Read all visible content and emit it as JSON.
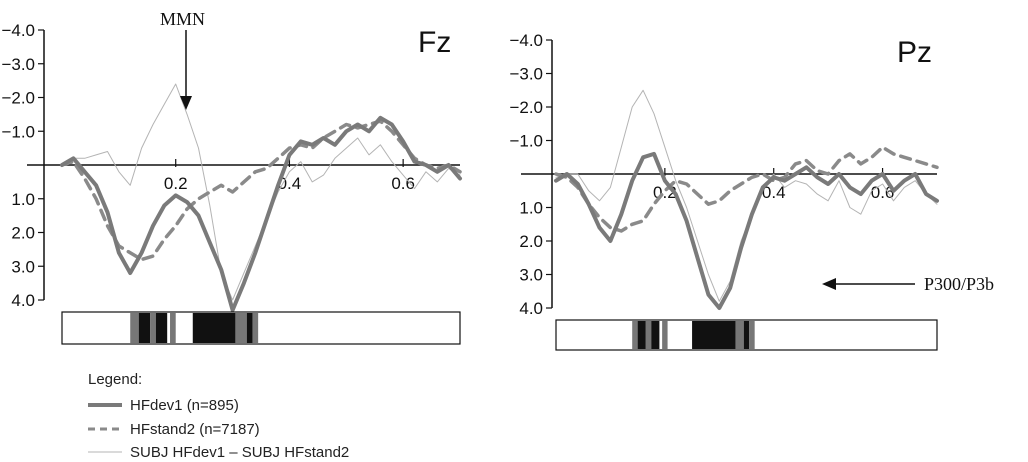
{
  "legend": {
    "title": "Legend:",
    "items": [
      {
        "label": "HFdev1 (n=895)",
        "style": "thick"
      },
      {
        "label": "HFstand2 (n=7187)",
        "style": "dashed"
      },
      {
        "label": "SUBJ HFdev1 – SUBJ HFstand2",
        "style": "thin"
      }
    ]
  },
  "annotations": {
    "mmn": "MMN",
    "p300": "P300/P3b"
  },
  "colors": {
    "thick_line": "#7a7a7a",
    "dashed_line": "#8a8a8a",
    "thin_line": "#b4b4b4",
    "axis": "#111111",
    "significance_dark": "#111111",
    "significance_mid": "#777777"
  },
  "chart_data": [
    {
      "type": "line",
      "title": "Fz",
      "xlabel": "",
      "ylabel": "",
      "xlim": [
        0.0,
        0.7
      ],
      "ylim": [
        -4.0,
        4.0
      ],
      "y_inverted": true,
      "x_ticks": [
        0.2,
        0.4,
        0.6
      ],
      "x_tick_labels": [
        "0.2",
        "0.4",
        "0.6"
      ],
      "y_ticks": [
        -4.0,
        -3.0,
        -2.0,
        -1.0,
        1.0,
        2.0,
        3.0,
        4.0
      ],
      "y_tick_labels": [
        "−4.0",
        "−3.0",
        "−2.0",
        "−1.0",
        "1.0",
        "2.0",
        "3.0",
        "4.0"
      ],
      "series": [
        {
          "name": "HFdev1 (n=895)",
          "style": "thick",
          "x": [
            0.0,
            0.02,
            0.04,
            0.06,
            0.08,
            0.1,
            0.12,
            0.14,
            0.16,
            0.18,
            0.2,
            0.22,
            0.24,
            0.26,
            0.28,
            0.3,
            0.32,
            0.34,
            0.36,
            0.38,
            0.4,
            0.42,
            0.44,
            0.46,
            0.48,
            0.5,
            0.52,
            0.54,
            0.56,
            0.58,
            0.6,
            0.62,
            0.64,
            0.66,
            0.68,
            0.7
          ],
          "y": [
            0.0,
            -0.2,
            0.2,
            0.6,
            1.4,
            2.6,
            3.2,
            2.6,
            1.8,
            1.2,
            0.9,
            1.1,
            1.5,
            2.3,
            3.1,
            4.3,
            3.5,
            2.6,
            1.6,
            0.6,
            -0.3,
            -0.7,
            -0.6,
            -0.8,
            -0.6,
            -1.0,
            -1.2,
            -1.0,
            -1.4,
            -1.2,
            -0.7,
            -0.1,
            0.0,
            0.2,
            0.0,
            0.4
          ]
        },
        {
          "name": "HFstand2 (n=7187)",
          "style": "dashed",
          "x": [
            0.0,
            0.02,
            0.04,
            0.06,
            0.08,
            0.1,
            0.12,
            0.14,
            0.16,
            0.18,
            0.2,
            0.22,
            0.24,
            0.26,
            0.28,
            0.3,
            0.32,
            0.34,
            0.36,
            0.38,
            0.4,
            0.42,
            0.44,
            0.46,
            0.48,
            0.5,
            0.52,
            0.54,
            0.56,
            0.58,
            0.6,
            0.62,
            0.64,
            0.66,
            0.68,
            0.7
          ],
          "y": [
            0.0,
            -0.1,
            0.4,
            1.0,
            1.8,
            2.4,
            2.6,
            2.8,
            2.7,
            2.2,
            1.8,
            1.3,
            1.0,
            0.8,
            0.6,
            0.8,
            0.5,
            0.2,
            0.1,
            -0.2,
            -0.5,
            -0.6,
            -0.5,
            -0.8,
            -1.0,
            -1.2,
            -1.1,
            -1.2,
            -1.3,
            -1.0,
            -0.6,
            -0.2,
            0.0,
            0.1,
            0.0,
            0.2
          ]
        },
        {
          "name": "SUBJ HFdev1 – SUBJ HFstand2",
          "style": "thin",
          "x": [
            0.0,
            0.02,
            0.04,
            0.06,
            0.08,
            0.1,
            0.12,
            0.14,
            0.16,
            0.18,
            0.2,
            0.22,
            0.24,
            0.26,
            0.28,
            0.3,
            0.32,
            0.34,
            0.36,
            0.38,
            0.4,
            0.42,
            0.44,
            0.46,
            0.48,
            0.5,
            0.52,
            0.54,
            0.56,
            0.58,
            0.6,
            0.62,
            0.64,
            0.66,
            0.68,
            0.7
          ],
          "y": [
            0.0,
            -0.2,
            -0.2,
            -0.3,
            -0.4,
            0.2,
            0.6,
            -0.5,
            -1.2,
            -1.8,
            -2.4,
            -1.5,
            -0.5,
            1.2,
            3.2,
            4.0,
            3.2,
            2.4,
            1.6,
            0.8,
            0.2,
            -0.1,
            0.5,
            0.3,
            -0.2,
            -0.5,
            -0.8,
            -0.3,
            -0.6,
            -0.1,
            0.3,
            0.7,
            0.2,
            0.5,
            0.1,
            0.3
          ]
        }
      ],
      "significance_bar": {
        "x_range": [
          0.0,
          0.7
        ],
        "segments": [
          {
            "x0": 0.12,
            "x1": 0.135,
            "level": "mid"
          },
          {
            "x0": 0.135,
            "x1": 0.155,
            "level": "dark"
          },
          {
            "x0": 0.155,
            "x1": 0.165,
            "level": "mid"
          },
          {
            "x0": 0.165,
            "x1": 0.185,
            "level": "dark"
          },
          {
            "x0": 0.19,
            "x1": 0.2,
            "level": "mid"
          },
          {
            "x0": 0.23,
            "x1": 0.305,
            "level": "dark"
          },
          {
            "x0": 0.305,
            "x1": 0.325,
            "level": "mid"
          },
          {
            "x0": 0.325,
            "x1": 0.335,
            "level": "dark"
          },
          {
            "x0": 0.335,
            "x1": 0.345,
            "level": "mid"
          }
        ]
      }
    },
    {
      "type": "line",
      "title": "Pz",
      "xlabel": "",
      "ylabel": "",
      "xlim": [
        0.0,
        0.7
      ],
      "ylim": [
        -4.0,
        4.0
      ],
      "y_inverted": true,
      "x_ticks": [
        0.2,
        0.4,
        0.6
      ],
      "x_tick_labels": [
        "0.2",
        "0.4",
        "0.6"
      ],
      "y_ticks": [
        -4.0,
        -3.0,
        -2.0,
        -1.0,
        1.0,
        2.0,
        3.0,
        4.0
      ],
      "y_tick_labels": [
        "−4.0",
        "−3.0",
        "−2.0",
        "−1.0",
        "1.0",
        "2.0",
        "3.0",
        "4.0"
      ],
      "series": [
        {
          "name": "HFdev1 (n=895)",
          "style": "thick",
          "x": [
            0.0,
            0.02,
            0.04,
            0.06,
            0.08,
            0.1,
            0.12,
            0.14,
            0.16,
            0.18,
            0.2,
            0.22,
            0.24,
            0.26,
            0.28,
            0.3,
            0.32,
            0.34,
            0.36,
            0.38,
            0.4,
            0.42,
            0.44,
            0.46,
            0.48,
            0.5,
            0.52,
            0.54,
            0.56,
            0.58,
            0.6,
            0.62,
            0.64,
            0.66,
            0.68,
            0.7
          ],
          "y": [
            0.2,
            0.0,
            0.3,
            0.9,
            1.6,
            2.0,
            1.2,
            0.2,
            -0.5,
            -0.6,
            0.2,
            0.6,
            1.4,
            2.5,
            3.6,
            4.0,
            3.4,
            2.2,
            1.2,
            0.4,
            0.1,
            0.2,
            0.0,
            -0.2,
            0.1,
            0.3,
            0.0,
            0.4,
            0.6,
            0.2,
            0.0,
            0.5,
            0.2,
            0.0,
            0.6,
            0.8
          ]
        },
        {
          "name": "HFstand2 (n=7187)",
          "style": "dashed",
          "x": [
            0.0,
            0.02,
            0.04,
            0.06,
            0.08,
            0.1,
            0.12,
            0.14,
            0.16,
            0.18,
            0.2,
            0.22,
            0.24,
            0.26,
            0.28,
            0.3,
            0.32,
            0.34,
            0.36,
            0.38,
            0.4,
            0.42,
            0.44,
            0.46,
            0.48,
            0.5,
            0.52,
            0.54,
            0.56,
            0.58,
            0.6,
            0.62,
            0.64,
            0.66,
            0.68,
            0.7
          ],
          "y": [
            0.0,
            0.1,
            0.4,
            0.9,
            1.3,
            1.6,
            1.7,
            1.5,
            1.4,
            0.9,
            0.5,
            0.2,
            0.3,
            0.6,
            0.9,
            0.8,
            0.5,
            0.3,
            0.1,
            0.0,
            0.2,
            0.1,
            -0.3,
            -0.4,
            -0.1,
            0.0,
            -0.4,
            -0.6,
            -0.3,
            -0.5,
            -0.8,
            -0.6,
            -0.5,
            -0.4,
            -0.3,
            -0.2
          ]
        },
        {
          "name": "SUBJ HFdev1 – SUBJ HFstand2",
          "style": "thin",
          "x": [
            0.0,
            0.02,
            0.04,
            0.06,
            0.08,
            0.1,
            0.12,
            0.14,
            0.16,
            0.18,
            0.2,
            0.22,
            0.24,
            0.26,
            0.28,
            0.3,
            0.32,
            0.34,
            0.36,
            0.38,
            0.4,
            0.42,
            0.44,
            0.46,
            0.48,
            0.5,
            0.52,
            0.54,
            0.56,
            0.58,
            0.6,
            0.62,
            0.64,
            0.66,
            0.68,
            0.7
          ],
          "y": [
            0.1,
            0.0,
            0.0,
            0.5,
            0.8,
            0.4,
            -0.8,
            -2.0,
            -2.5,
            -1.8,
            -0.8,
            0.2,
            1.0,
            2.0,
            3.0,
            3.8,
            3.2,
            2.0,
            1.2,
            0.4,
            0.0,
            0.4,
            0.2,
            0.3,
            0.6,
            0.8,
            0.2,
            1.0,
            1.2,
            0.5,
            0.3,
            0.8,
            0.4,
            0.2,
            0.6,
            0.9
          ]
        }
      ],
      "significance_bar": {
        "x_range": [
          0.0,
          0.7
        ],
        "segments": [
          {
            "x0": 0.14,
            "x1": 0.15,
            "level": "mid"
          },
          {
            "x0": 0.15,
            "x1": 0.165,
            "level": "dark"
          },
          {
            "x0": 0.165,
            "x1": 0.175,
            "level": "mid"
          },
          {
            "x0": 0.175,
            "x1": 0.19,
            "level": "dark"
          },
          {
            "x0": 0.195,
            "x1": 0.205,
            "level": "mid"
          },
          {
            "x0": 0.25,
            "x1": 0.33,
            "level": "dark"
          },
          {
            "x0": 0.33,
            "x1": 0.345,
            "level": "mid"
          },
          {
            "x0": 0.345,
            "x1": 0.355,
            "level": "dark"
          },
          {
            "x0": 0.355,
            "x1": 0.365,
            "level": "mid"
          }
        ]
      }
    }
  ]
}
